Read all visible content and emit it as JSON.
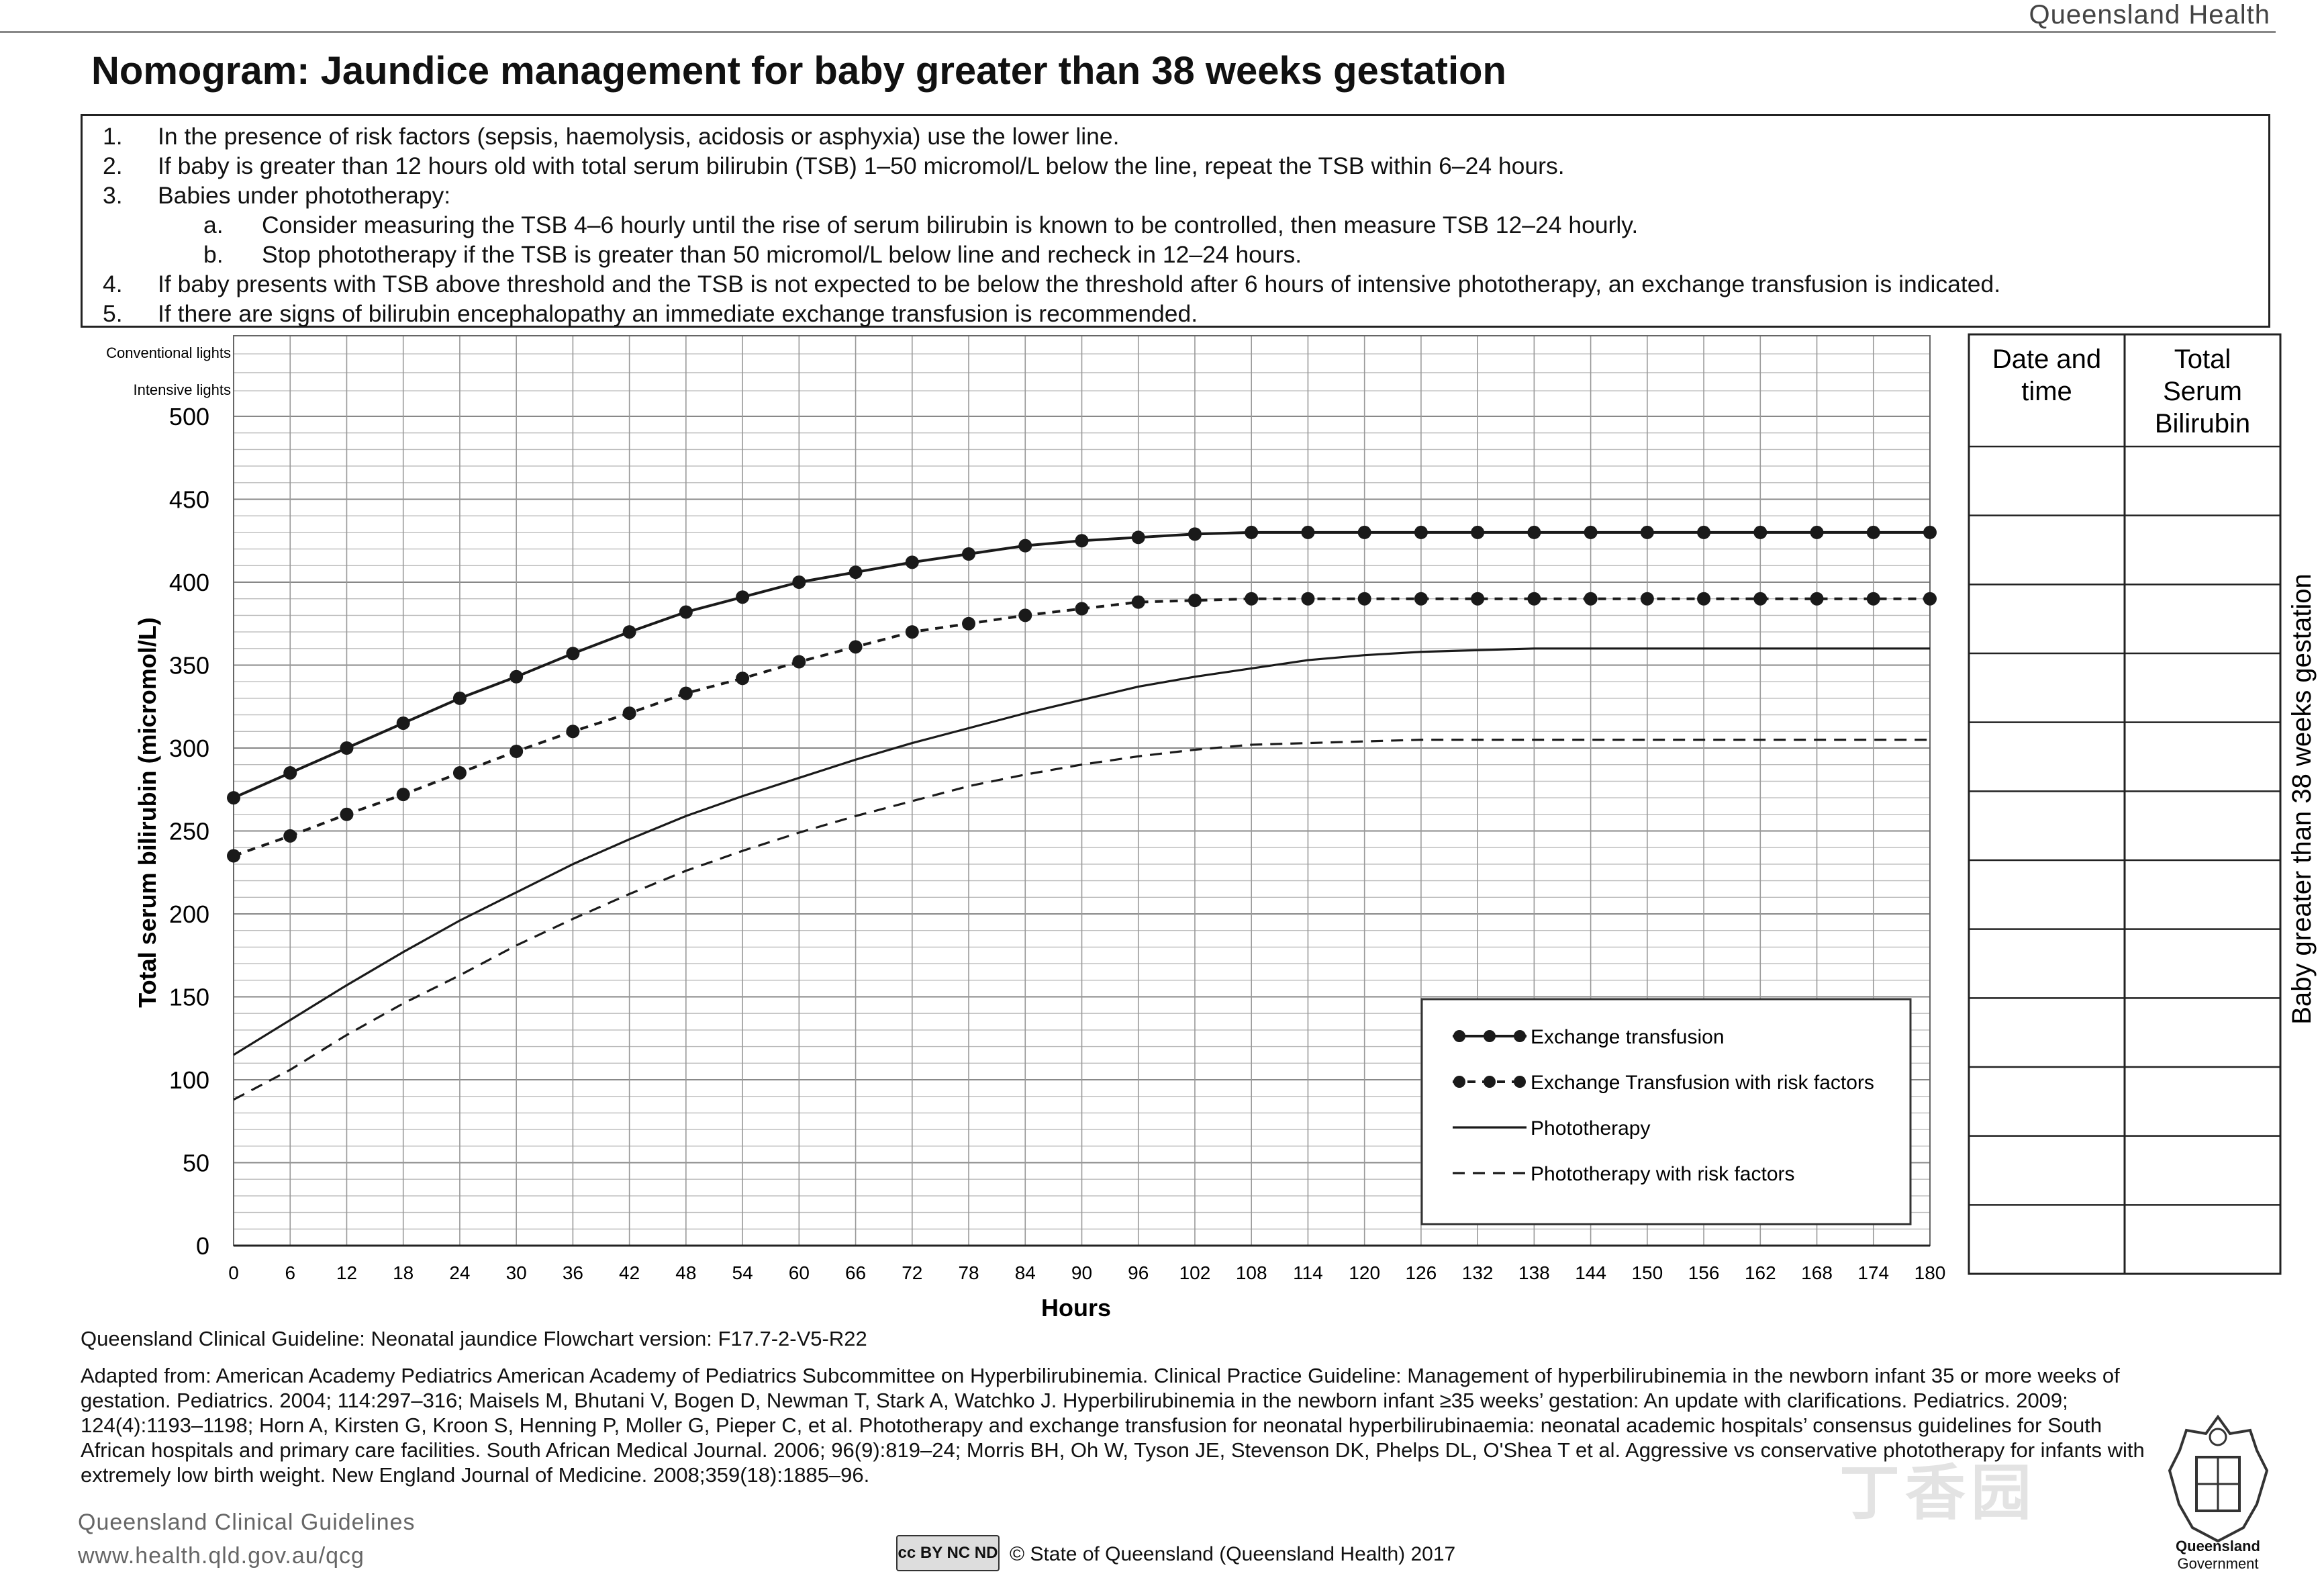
{
  "header": {
    "organisation": "Queensland Health",
    "title": "Nomogram: Jaundice management for baby greater than 38 weeks gestation"
  },
  "notes": [
    {
      "num": "1.",
      "text": "In the presence of risk factors (sepsis, haemolysis, acidosis or asphyxia) use the lower line.",
      "sub": false
    },
    {
      "num": "2.",
      "text": "If baby is greater than 12 hours old with total serum bilirubin (TSB) 1–50 micromol/L below the line, repeat the TSB within 6–24 hours.",
      "sub": false
    },
    {
      "num": "3.",
      "text": "Babies under phototherapy:",
      "sub": false
    },
    {
      "num": "a.",
      "text": "Consider measuring the TSB 4–6 hourly until the rise of serum bilirubin is known to be controlled, then measure TSB 12–24 hourly.",
      "sub": true
    },
    {
      "num": "b.",
      "text": "Stop phototherapy if the TSB is greater than 50 micromol/L below line and recheck in 12–24 hours.",
      "sub": true
    },
    {
      "num": "4.",
      "text": "If baby presents with TSB above threshold and the TSB is not expected to be below the threshold after 6 hours of intensive phototherapy, an exchange transfusion is indicated.",
      "sub": false
    },
    {
      "num": "5.",
      "text": "If there are signs of bilirubin encephalopathy an immediate exchange transfusion is recommended.",
      "sub": false
    }
  ],
  "chart_data": {
    "type": "line",
    "xlabel": "Hours",
    "ylabel": "Total serum bilirubin (micromol/L)",
    "xlim": [
      0,
      180
    ],
    "ylim": [
      0,
      500
    ],
    "x_ticks": [
      0,
      6,
      12,
      18,
      24,
      30,
      36,
      42,
      48,
      54,
      60,
      66,
      72,
      78,
      84,
      90,
      96,
      102,
      108,
      114,
      120,
      126,
      132,
      138,
      144,
      150,
      156,
      162,
      168,
      174,
      180
    ],
    "y_ticks": [
      0,
      50,
      100,
      150,
      200,
      250,
      300,
      350,
      400,
      450,
      500
    ],
    "row_labels": [
      "Conventional lights",
      "Intensive lights"
    ],
    "grid": true,
    "legend": "bottom-right",
    "x": [
      0,
      6,
      12,
      18,
      24,
      30,
      36,
      42,
      48,
      54,
      60,
      66,
      72,
      78,
      84,
      90,
      96,
      102,
      108,
      114,
      120,
      126,
      132,
      138,
      144,
      150,
      156,
      162,
      168,
      174,
      180
    ],
    "series": [
      {
        "name": "Exchange transfusion",
        "style": "solid-markers",
        "values": [
          270,
          285,
          300,
          315,
          330,
          343,
          357,
          370,
          382,
          391,
          400,
          406,
          412,
          417,
          422,
          425,
          427,
          429,
          430,
          430,
          430,
          430,
          430,
          430,
          430,
          430,
          430,
          430,
          430,
          430,
          430
        ]
      },
      {
        "name": "Exchange Transfusion with risk factors",
        "style": "dashed-markers",
        "values": [
          235,
          247,
          260,
          272,
          285,
          298,
          310,
          321,
          333,
          342,
          352,
          361,
          370,
          375,
          380,
          384,
          388,
          389,
          390,
          390,
          390,
          390,
          390,
          390,
          390,
          390,
          390,
          390,
          390,
          390,
          390
        ]
      },
      {
        "name": "Phototherapy",
        "style": "solid",
        "values": [
          115,
          136,
          157,
          177,
          196,
          213,
          230,
          245,
          259,
          271,
          282,
          293,
          303,
          312,
          321,
          329,
          337,
          343,
          348,
          353,
          356,
          358,
          359,
          360,
          360,
          360,
          360,
          360,
          360,
          360,
          360
        ]
      },
      {
        "name": "Phototherapy with risk factors",
        "style": "dashed",
        "values": [
          88,
          106,
          127,
          146,
          163,
          181,
          197,
          212,
          226,
          238,
          249,
          259,
          268,
          277,
          284,
          290,
          295,
          299,
          302,
          303,
          304,
          305,
          305,
          305,
          305,
          305,
          305,
          305,
          305,
          305,
          305
        ]
      }
    ]
  },
  "record_table": {
    "col1": "Date and time",
    "col2": "Total Serum Bilirubin",
    "side_label": "Baby greater than 38 weeks gestation"
  },
  "footer": {
    "version": "Queensland Clinical Guideline: Neonatal jaundice Flowchart version: F17.7-2-V5-R22",
    "adapted": "Adapted from: American Academy Pediatrics American Academy of Pediatrics Subcommittee on Hyperbilirubinemia. Clinical Practice Guideline: Management of hyperbilirubinemia in the newborn infant 35 or more weeks of gestation. Pediatrics. 2004; 114:297–316; Maisels M, Bhutani V, Bogen D, Newman T, Stark A, Watchko J. Hyperbilirubinemia in the newborn infant ≥35 weeks’ gestation: An update with clarifications. Pediatrics. 2009; 124(4):1193–1198; Horn A, Kirsten G, Kroon S, Henning P, Moller G, Pieper C, et al. Phototherapy and exchange transfusion for neonatal hyperbilirubinaemia: neonatal academic hospitals’ consensus guidelines for South African hospitals and primary care facilities. South African Medical Journal. 2006; 96(9):819–24; Morris BH, Oh W, Tyson JE, Stevenson DK, Phelps DL, O'Shea T et al. Aggressive vs conservative phototherapy for infants with extremely low birth weight. New England Journal of Medicine. 2008;359(18):1885–96.",
    "qcg_name": "Queensland Clinical Guidelines",
    "qcg_url": "www.health.qld.gov.au/qcg",
    "cc_badge": "cc BY NC ND",
    "copyright": "© State of Queensland (Queensland Health) 2017",
    "crest_label": "Queensland",
    "crest_sub": "Government"
  }
}
